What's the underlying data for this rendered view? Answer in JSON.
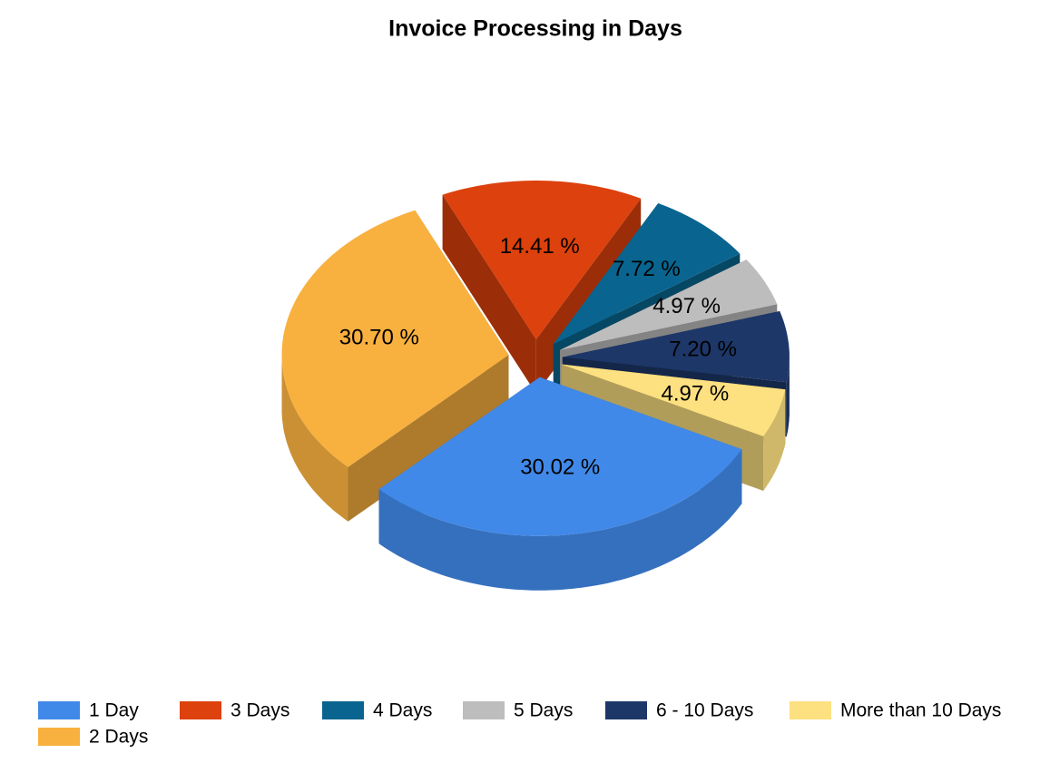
{
  "chart_data": {
    "type": "pie3d",
    "title": "Invoice Processing in Days",
    "categories": [
      "1 Day",
      "2 Days",
      "3 Days",
      "4 Days",
      "5 Days",
      "6 - 10 Days",
      "More than 10 Days"
    ],
    "values": [
      30.02,
      30.7,
      14.41,
      7.72,
      4.97,
      7.2,
      4.97
    ],
    "value_labels": [
      "30.02 %",
      "30.70 %",
      "14.41 %",
      "7.72 %",
      "4.97 %",
      "7.20 %",
      "4.97 %"
    ],
    "colors": [
      "#4189e8",
      "#f8b03f",
      "#dd410d",
      "#09658f",
      "#bdbdbd",
      "#1d3768",
      "#fde080"
    ]
  }
}
